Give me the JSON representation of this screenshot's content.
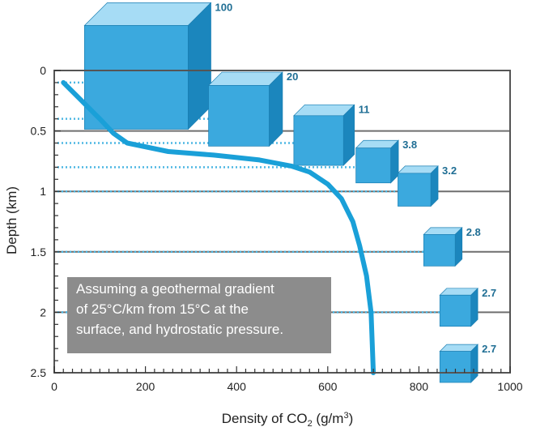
{
  "chart_data": {
    "type": "line",
    "title": "",
    "xlabel": "Density of CO",
    "xlabel_sub": "2",
    "xlabel_unit": " (g/m",
    "xlabel_sup": "3",
    "xlabel_close": ")",
    "ylabel": "Depth (km)",
    "xlim": [
      0,
      1000
    ],
    "ylim": [
      0,
      2.5
    ],
    "y_inverted": true,
    "x_ticks": [
      0,
      200,
      400,
      600,
      800,
      1000
    ],
    "x_tick_labels": [
      "0",
      "200",
      "400",
      "600",
      "800",
      "1000"
    ],
    "y_ticks": [
      0,
      0.5,
      1,
      1.5,
      2,
      2.5
    ],
    "y_tick_labels": [
      "0",
      "0.5",
      "1",
      "1.5",
      "2",
      "2.5"
    ],
    "grid": "horizontal",
    "series": [
      {
        "color": "#1aa0d8",
        "x": [
          20,
          60,
          100,
          130,
          160,
          250,
          350,
          450,
          520,
          560,
          600,
          630,
          655,
          670,
          685,
          695,
          700
        ],
        "y": [
          0.1,
          0.25,
          0.4,
          0.52,
          0.6,
          0.67,
          0.7,
          0.74,
          0.79,
          0.84,
          0.94,
          1.06,
          1.25,
          1.45,
          1.7,
          2.0,
          2.5
        ]
      }
    ],
    "cubes": [
      {
        "label": "100",
        "depth": 0.1,
        "density": 180
      },
      {
        "label": "20",
        "depth": 0.4,
        "density": 405
      },
      {
        "label": "11",
        "depth": 0.6,
        "density": 580
      },
      {
        "label": "3.8",
        "depth": 0.8,
        "density": 700
      },
      {
        "label": "3.2",
        "depth": 1.0,
        "density": 790
      },
      {
        "label": "2.8",
        "depth": 1.5,
        "density": 845
      },
      {
        "label": "2.7",
        "depth": 2.0,
        "density": 880
      },
      {
        "label": "2.7",
        "depth": 2.5,
        "density": 880
      }
    ],
    "annotation": {
      "lines": [
        "Assuming a geothermal gradient",
        "of 25°C/km from 15°C at the",
        "surface, and hydrostatic pressure."
      ]
    },
    "colors": {
      "curve": "#1aa0d8",
      "cube_front": "#3ba9de",
      "cube_top": "#a6dcf5",
      "cube_side": "#1b86bd",
      "dotted_line": "#4db7e3",
      "annotation_bg": "#8c8c8c",
      "gridline": "#6f6f6f"
    }
  }
}
